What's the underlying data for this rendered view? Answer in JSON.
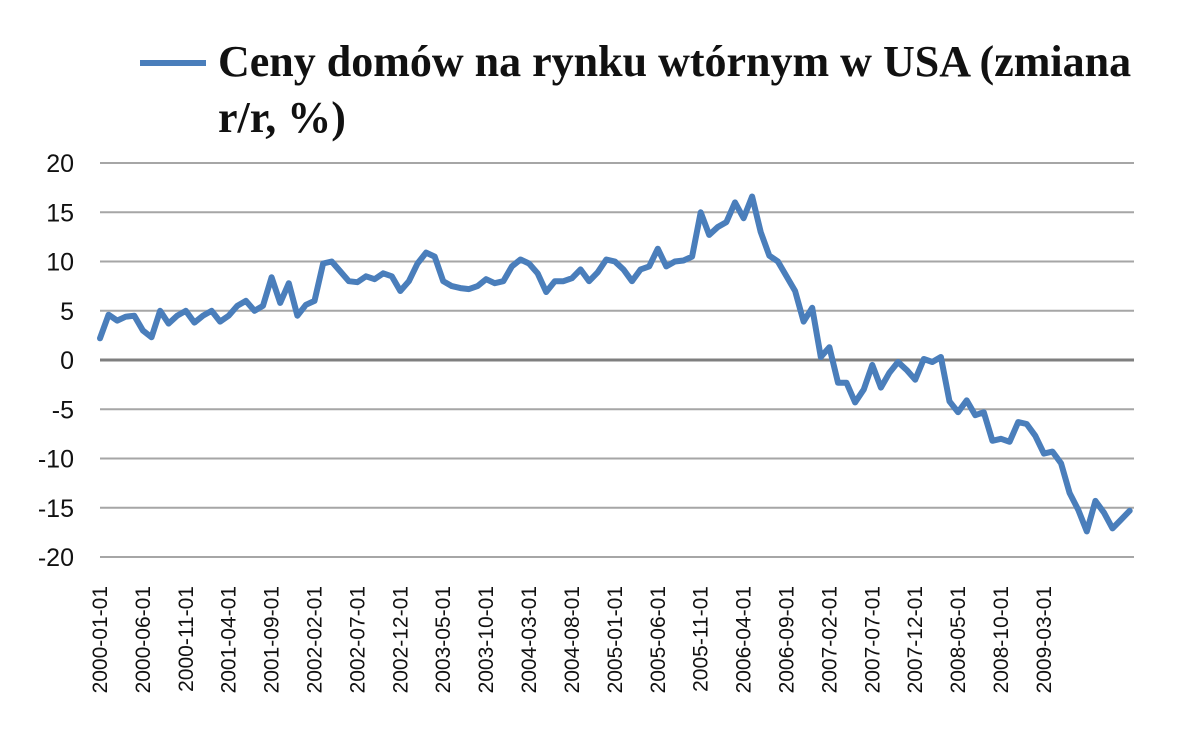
{
  "chart_data": {
    "type": "line",
    "title": "",
    "legend": {
      "placement": "top",
      "entries": [
        "Ceny domów na rynku wtórnym w USA (zmiana r/r, %)"
      ]
    },
    "xlabel": "",
    "ylabel": "",
    "ylim": [
      -20,
      20
    ],
    "yticks": [
      "20",
      "15",
      "10",
      "5",
      "0",
      "-5",
      "-10",
      "-15",
      "-20"
    ],
    "xtick_labels": [
      "2000-01-01",
      "2000-06-01",
      "2000-11-01",
      "2001-04-01",
      "2001-09-01",
      "2002-02-01",
      "2002-07-01",
      "2002-12-01",
      "2003-05-01",
      "2003-10-01",
      "2004-03-01",
      "2004-08-01",
      "2005-01-01",
      "2005-06-01",
      "2005-11-01",
      "2006-04-01",
      "2006-09-01",
      "2007-02-01",
      "2007-07-01",
      "2007-12-01",
      "2008-05-01",
      "2008-10-01",
      "2009-03-01"
    ],
    "grid": true,
    "colors": {
      "series": "#4a7ebb",
      "grid": "#a6a6a6",
      "zero_line": "#7f7f7f"
    },
    "series": [
      {
        "name": "Ceny domów na rynku wtórnym w USA (zmiana r/r, %)",
        "start": "2000-01",
        "frequency": "monthly",
        "values": [
          2.2,
          4.6,
          4.0,
          4.4,
          4.5,
          3.0,
          2.3,
          5.0,
          3.7,
          4.5,
          5.0,
          3.8,
          4.5,
          5.0,
          3.9,
          4.5,
          5.5,
          6.0,
          5.0,
          5.5,
          8.4,
          5.8,
          7.8,
          4.5,
          5.6,
          6.0,
          9.8,
          10.0,
          9.0,
          8.0,
          7.9,
          8.5,
          8.2,
          8.8,
          8.5,
          7.0,
          8.0,
          9.8,
          10.9,
          10.5,
          8.0,
          7.5,
          7.3,
          7.2,
          7.5,
          8.2,
          7.8,
          8.0,
          9.5,
          10.2,
          9.8,
          8.8,
          6.9,
          8.0,
          8.0,
          8.3,
          9.2,
          8.0,
          8.9,
          10.2,
          10.0,
          9.2,
          8.0,
          9.2,
          9.5,
          11.3,
          9.5,
          10.0,
          10.1,
          10.5,
          15.0,
          12.7,
          13.5,
          14.0,
          16.0,
          14.4,
          16.6,
          13.0,
          10.6,
          10.0,
          8.5,
          7.0,
          3.9,
          5.3,
          0.3,
          1.3,
          -2.3,
          -2.3,
          -4.3,
          -3.0,
          -0.5,
          -2.8,
          -1.3,
          -0.2,
          -1.0,
          -2.0,
          0.1,
          -0.2,
          0.3,
          -4.2,
          -5.3,
          -4.1,
          -5.6,
          -5.3,
          -8.2,
          -8.0,
          -8.3,
          -6.3,
          -6.5,
          -7.7,
          -9.5,
          -9.3,
          -10.5,
          -13.5,
          -15.2,
          -17.4,
          -14.3,
          -15.5,
          -17.1,
          -16.2,
          -15.3
        ]
      }
    ]
  }
}
